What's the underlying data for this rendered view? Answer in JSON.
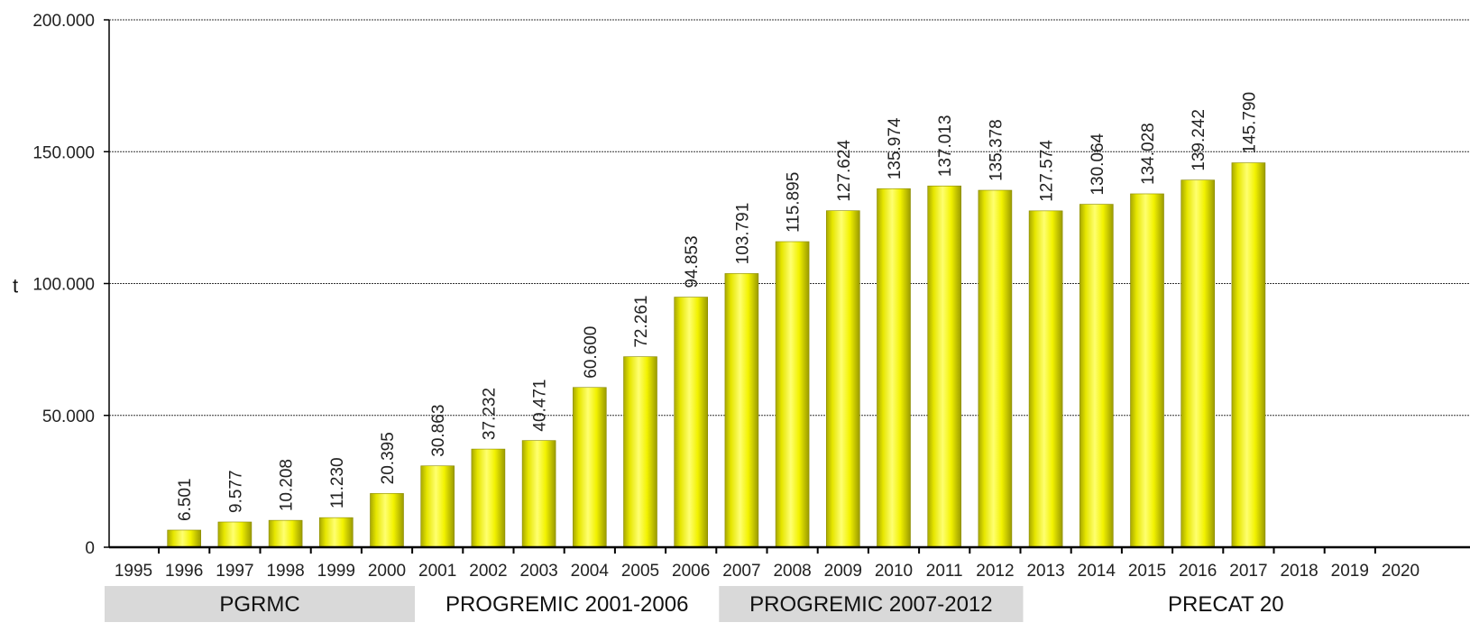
{
  "chart_data": {
    "type": "bar",
    "ylabel": "t",
    "ylim": [
      0,
      200000
    ],
    "yticks": [
      0,
      50000,
      100000,
      150000,
      200000
    ],
    "ytick_labels": [
      "0",
      "50.000",
      "100.000",
      "150.000",
      "200.000"
    ],
    "grid": true,
    "legend": "none",
    "categories": [
      "1995",
      "1996",
      "1997",
      "1998",
      "1999",
      "2000",
      "2001",
      "2002",
      "2003",
      "2004",
      "2005",
      "2006",
      "2007",
      "2008",
      "2009",
      "2010",
      "2011",
      "2012",
      "2013",
      "2014",
      "2015",
      "2016",
      "2017",
      "2018",
      "2019",
      "2020"
    ],
    "values": [
      null,
      6501,
      9577,
      10208,
      11230,
      20395,
      30863,
      37232,
      40471,
      60600,
      72261,
      94853,
      103791,
      115895,
      127624,
      135974,
      137013,
      135378,
      127574,
      130064,
      134028,
      139242,
      145790,
      null,
      null,
      null
    ],
    "value_labels": [
      "",
      "6.501",
      "9.577",
      "10.208",
      "11.230",
      "20.395",
      "30.863",
      "37.232",
      "40.471",
      "60.600",
      "72.261",
      "94.853",
      "103.791",
      "115.895",
      "127.624",
      "135.974",
      "137.013",
      "135.378",
      "127.574",
      "130.064",
      "134.028",
      "139.242",
      "145.790",
      "",
      "",
      ""
    ],
    "periods": [
      {
        "label": "PGRMC",
        "from": "1995",
        "to": "2000",
        "color": "#d9d9d9"
      },
      {
        "label": "PROGREMIC 2001-2006",
        "from": "2001",
        "to": "2006",
        "color": "#ffffff"
      },
      {
        "label": "PROGREMIC 2007-2012",
        "from": "2007",
        "to": "2012",
        "color": "#d9d9d9"
      },
      {
        "label": "PRECAT 20",
        "from": "2013",
        "to": "2020",
        "color": "#ffffff"
      }
    ],
    "colors": {
      "bar_light": "#ffff66",
      "bar_main": "#f2f200",
      "bar_dark": "#9a9a00",
      "grid": "#333333",
      "period_shade": "#d9d9d9"
    }
  }
}
